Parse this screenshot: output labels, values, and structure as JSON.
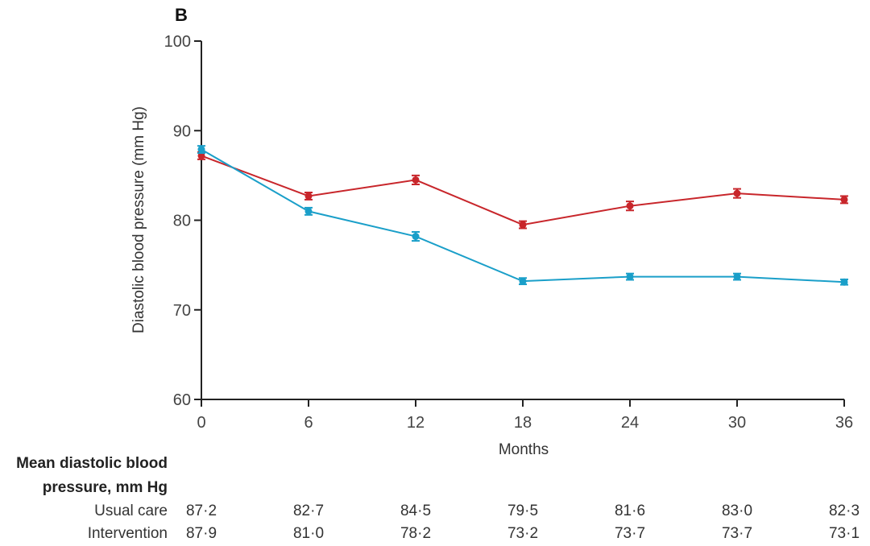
{
  "panel_label": "B",
  "colors": {
    "usual_care": "#c8262b",
    "intervention": "#1a9fc9",
    "axis": "#222222"
  },
  "chart_data": {
    "type": "line",
    "xlabel": "Months",
    "ylabel": "Diastolic blood pressure (mm Hg)",
    "x": [
      0,
      6,
      12,
      18,
      24,
      30,
      36
    ],
    "x_ticks": [
      "0",
      "6",
      "12",
      "18",
      "24",
      "30",
      "36"
    ],
    "y_ticks": [
      "60",
      "70",
      "80",
      "90",
      "100"
    ],
    "xlim": [
      0,
      36
    ],
    "ylim": [
      60,
      100
    ],
    "grid": false,
    "series": [
      {
        "key": "usual_care",
        "values": [
          87.2,
          82.7,
          84.5,
          79.5,
          81.6,
          83.0,
          82.3
        ],
        "error": [
          0.4,
          0.4,
          0.5,
          0.4,
          0.5,
          0.5,
          0.4
        ]
      },
      {
        "key": "intervention",
        "values": [
          87.9,
          81.0,
          78.2,
          73.2,
          73.7,
          73.7,
          73.1
        ],
        "error": [
          0.4,
          0.4,
          0.5,
          0.35,
          0.35,
          0.35,
          0.3
        ]
      }
    ]
  },
  "table": {
    "title_line1": "Mean diastolic blood",
    "title_line2": "pressure, mm Hg",
    "rows": [
      {
        "label": "Usual care",
        "values": [
          "87·2",
          "82·7",
          "84·5",
          "79·5",
          "81·6",
          "83·0",
          "82·3"
        ]
      },
      {
        "label": "Intervention",
        "values": [
          "87·9",
          "81·0",
          "78·2",
          "73·2",
          "73·7",
          "73·7",
          "73·1"
        ]
      }
    ]
  }
}
